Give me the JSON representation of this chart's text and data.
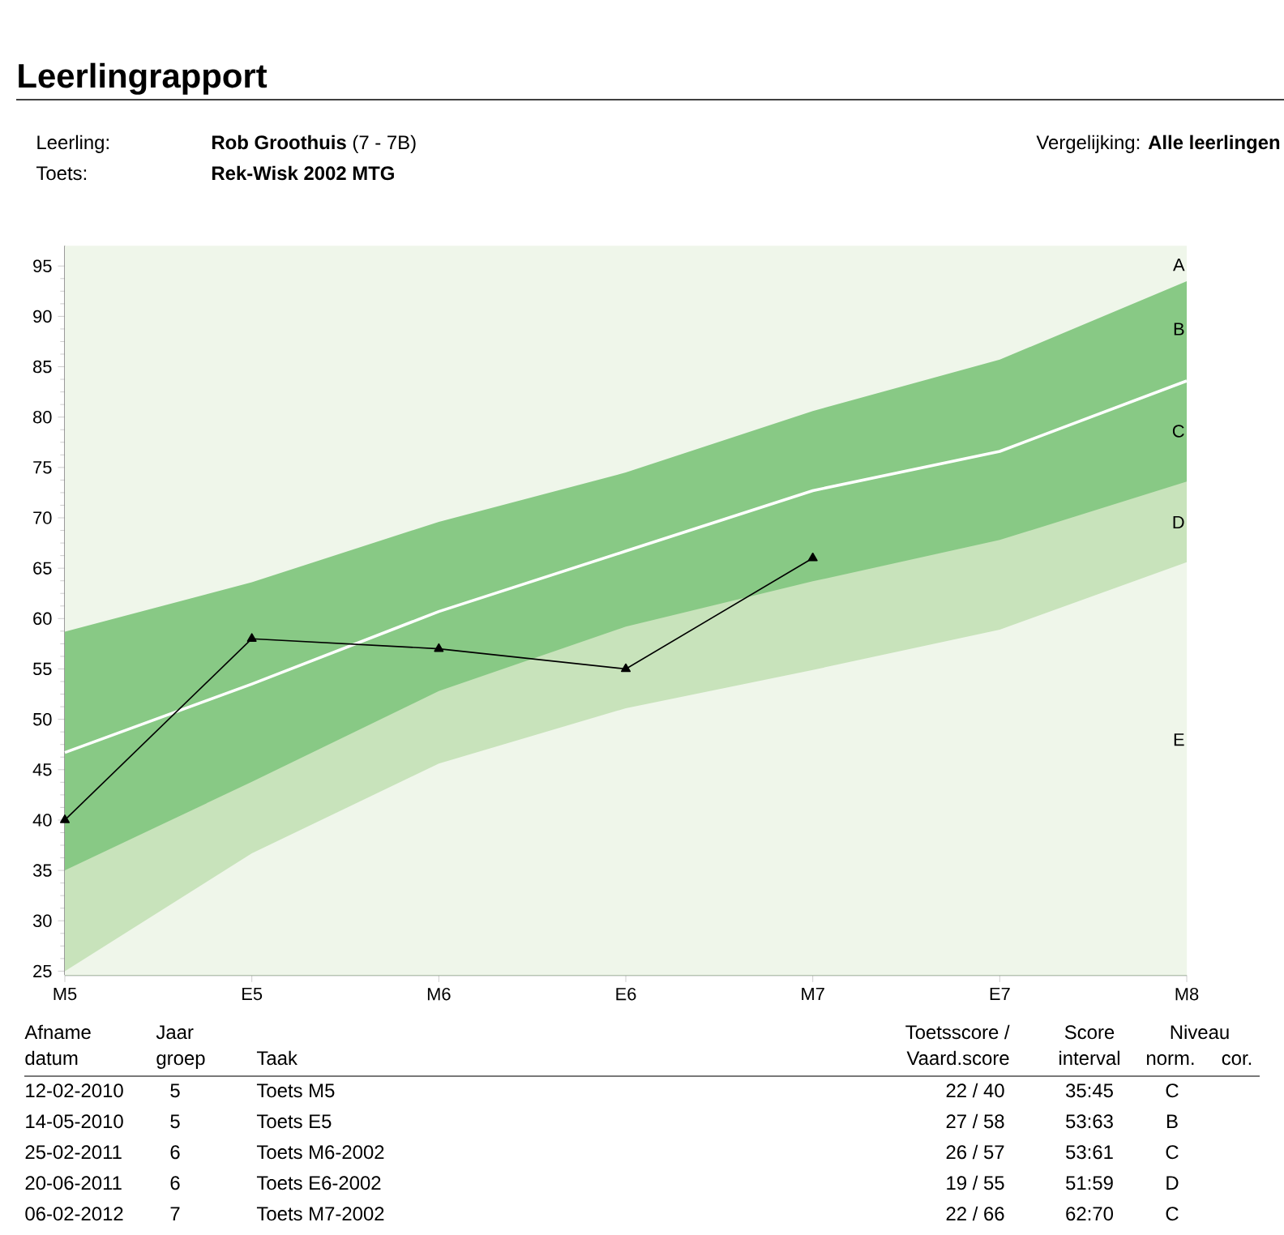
{
  "chart_data": {
    "type": "area",
    "title": "Leerlingrapport",
    "categories": [
      "M5",
      "E5",
      "M6",
      "E6",
      "M7",
      "E7",
      "M8"
    ],
    "series": [
      {
        "color": "#88c985",
        "values": [
          58.7,
          63.6,
          69.6,
          74.5,
          80.6,
          85.7,
          93.5
        ]
      },
      {
        "color": "#c8e3bb",
        "values": [
          35.0,
          43.8,
          52.8,
          59.2,
          63.7,
          67.8,
          73.6
        ]
      },
      {
        "color": "#eff6ea",
        "values": [
          25.0,
          36.7,
          45.6,
          51.1,
          54.9,
          58.9,
          65.6
        ]
      },
      {
        "type": "line",
        "color": "#ffffff",
        "values": [
          46.7,
          53.5,
          60.7,
          66.7,
          72.7,
          76.6,
          83.6
        ]
      },
      {
        "type": "line",
        "color": "#000000",
        "marker": "triangle",
        "values": [
          40,
          58,
          57,
          55,
          66,
          null,
          null
        ]
      }
    ],
    "ylim": [
      24.6,
      97
    ],
    "yticks": [
      25,
      30,
      35,
      40,
      45,
      50,
      55,
      60,
      65,
      70,
      75,
      80,
      85,
      90,
      95
    ],
    "bands": [
      {
        "axis": "y",
        "from": 24.6,
        "to": 97,
        "color": "#eff6ea"
      }
    ],
    "annotations": [
      "Leerling:",
      "**Rob Groothuis**  (7 - 7B)",
      "Toets:",
      "Rek-Wisk 2002 MTG",
      "Vergelijking: **Alle leerlingen**",
      "Afname",
      "datum",
      "Jaar",
      "groep",
      "Taak",
      "Toetsscore /",
      "Vaard.score",
      "Score",
      "interval",
      "Niveau",
      "norm.",
      "cor.",
      "12-02-2010",
      "5",
      "Toets M5",
      "22 / 40",
      "35:45",
      "C",
      "14-05-2010",
      "5",
      "Toets E5",
      "27 / 58",
      "53:63",
      "B",
      "25-02-2011",
      "6",
      "Toets M6-2002",
      "26 / 57",
      "53:61",
      "C",
      "20-06-2011",
      "6",
      "Toets E6-2002",
      "19 / 55",
      "51:59",
      "D",
      "06-02-2012",
      "7",
      "Toets M7-2002",
      "22 / 66",
      "62:70",
      "C",
      "A",
      "B",
      "C",
      "D",
      "E"
    ]
  }
}
